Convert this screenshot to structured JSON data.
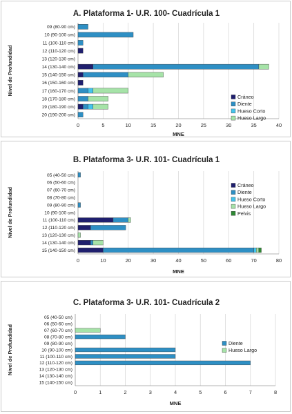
{
  "chart_data": [
    {
      "type": "bar",
      "orientation": "horizontal",
      "stacked": true,
      "title": "A. Plataforma 1- U.R. 100- Cuadrícula 1",
      "ylabel": "Nivel de Profundidad",
      "xlabel": "MNE",
      "xlim": [
        0,
        40
      ],
      "xticks": [
        0,
        5,
        10,
        15,
        20,
        25,
        30,
        35,
        40
      ],
      "categories": [
        "09 (80-90 cm)",
        "10 (90-100 cm)",
        "11 (100-110 cm)",
        "12 (110-120 cm)",
        "13 (120-130 cm)",
        "14 (130-140 cm)",
        "15 (140-150 cm)",
        "16 (150-160 cm)",
        "17 (160-170 cm)",
        "18 (170-180 cm)",
        "19 (180-190 cm)",
        "20 (190-200 cm)"
      ],
      "series": [
        {
          "name": "Cráneo",
          "color": "#1f1f6e",
          "values": [
            0,
            0,
            0,
            1,
            0,
            3,
            1,
            1,
            0,
            0,
            1,
            0
          ]
        },
        {
          "name": "Diente",
          "color": "#2e8fc4",
          "values": [
            2,
            11,
            1,
            0,
            0,
            33,
            9,
            0,
            2,
            2,
            1,
            1
          ]
        },
        {
          "name": "Hueso Corto",
          "color": "#44c4ec",
          "values": [
            0,
            0,
            0,
            0,
            0,
            0,
            0,
            0,
            1,
            0,
            1,
            0
          ]
        },
        {
          "name": "Hueso Largo",
          "color": "#a6e3a8",
          "values": [
            0,
            0,
            0,
            0,
            0,
            2,
            7,
            0,
            7,
            4,
            3,
            0
          ]
        }
      ],
      "grid": true,
      "legend_position": "right"
    },
    {
      "type": "bar",
      "orientation": "horizontal",
      "stacked": true,
      "title": "B. Plataforma 3- U.R. 101- Cuadrícula 1",
      "ylabel": "Nivel de Profundidad",
      "xlabel": "MNE",
      "xlim": [
        0,
        80
      ],
      "xticks": [
        0,
        10,
        20,
        30,
        40,
        50,
        60,
        70,
        80
      ],
      "categories": [
        "05 (40-50 cm)",
        "06 (50-60 cm)",
        "07 (60-70 cm)",
        "08 (70-80 cm)",
        "09 (80-90 cm)",
        "10 (90-100 cm)",
        "11 (100-110 cm)",
        "12 (110-120 cm)",
        "13 (120-130 cm)",
        "14 (130-140 cm)",
        "15 (140-150 cm)"
      ],
      "series": [
        {
          "name": "Cráneo",
          "color": "#1f1f6e",
          "values": [
            0,
            0,
            0,
            0,
            0,
            0,
            14,
            5,
            0,
            5,
            10
          ]
        },
        {
          "name": "Diente",
          "color": "#2e8fc4",
          "values": [
            1,
            0,
            0,
            0,
            1,
            0,
            6,
            14,
            0,
            1,
            60
          ]
        },
        {
          "name": "Hueso Corto",
          "color": "#44c4ec",
          "values": [
            0,
            0,
            0,
            0,
            0,
            0,
            0,
            0,
            0,
            0,
            1
          ]
        },
        {
          "name": "Hueso Largo",
          "color": "#a6e3a8",
          "values": [
            0,
            0,
            0,
            0,
            0,
            0,
            1,
            0,
            1,
            4,
            1
          ]
        },
        {
          "name": "Pelvis",
          "color": "#2e8a34",
          "values": [
            0,
            0,
            0,
            0,
            0,
            0,
            0,
            0,
            0,
            0,
            1
          ]
        }
      ],
      "grid": true,
      "legend_position": "right"
    },
    {
      "type": "bar",
      "orientation": "horizontal",
      "stacked": true,
      "title": "C. Plataforma 3- U.R. 101- Cuadrícula 2",
      "ylabel": "Nivel de Profundidad",
      "xlabel": "MNE",
      "xlim": [
        0,
        8
      ],
      "xticks": [
        0,
        1,
        2,
        3,
        4,
        5,
        6,
        7,
        8
      ],
      "categories": [
        "05 (40-50 cm)",
        "06 (50-60 cm)",
        "07 (60-70 cm)",
        "08 (70-80 cm)",
        "09 (80-90 cm)",
        "10 (90-100 cm)",
        "11 (100-110 cm)",
        "12 (110-120 cm)",
        "13 (120-130 cm)",
        "14 (130-140 cm)",
        "15 (140-150 cm)"
      ],
      "series": [
        {
          "name": "Diente",
          "color": "#2e8fc4",
          "values": [
            0,
            0,
            0,
            2,
            0,
            4,
            4,
            7,
            0,
            0,
            0
          ]
        },
        {
          "name": "Hueso Largo",
          "color": "#a6e3a8",
          "values": [
            0,
            0,
            1,
            0,
            0,
            0,
            0,
            0,
            0,
            0,
            0
          ]
        }
      ],
      "grid": true,
      "legend_position": "right"
    }
  ]
}
